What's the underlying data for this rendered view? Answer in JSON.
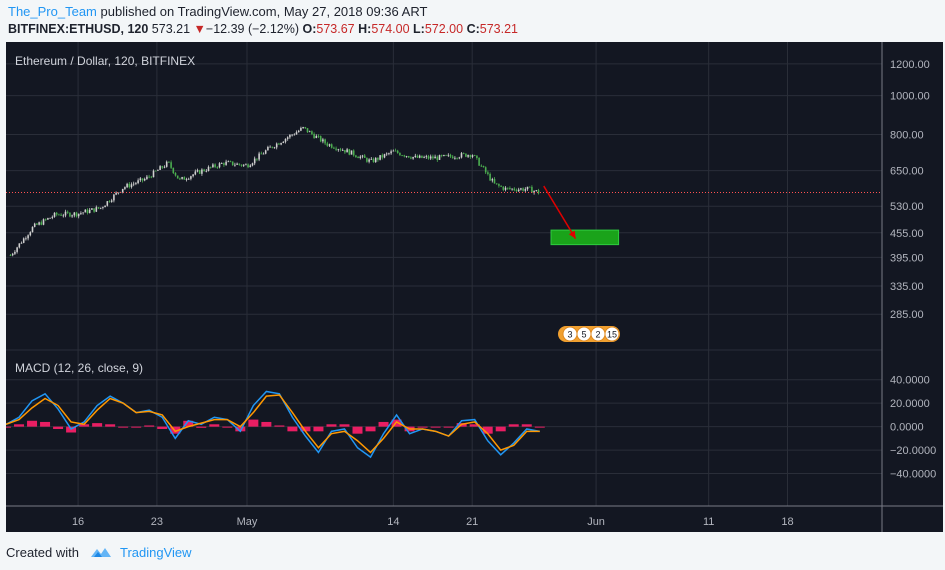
{
  "header": {
    "author": "The_Pro_Team",
    "published_text": "published on TradingView.com, May 27, 2018 09:36 ART",
    "symbol": "BITFINEX:ETHUSD, 120",
    "last_price": "573.21",
    "change_arrow": "▼",
    "change": "−12.39 (−2.12%)",
    "o_label": "O:",
    "o_value": "573.67",
    "h_label": "H:",
    "h_value": "574.00",
    "l_label": "L:",
    "l_value": "572.00",
    "c_label": "C:",
    "c_value": "573.21"
  },
  "colors": {
    "background": "#131722",
    "candle_up": "#d0d0d0",
    "candle_down": "#4caf50",
    "macd_line": "#2196f3",
    "signal_line": "#ff9800",
    "histogram": "#e91e63",
    "target_box": "#1aa31a",
    "arrow": "#e00000",
    "price_line": "#ff5252"
  },
  "chart_data": [
    {
      "type": "candlestick",
      "title": "Ethereum / Dollar, 120, BITFINEX",
      "y_scale": "log",
      "ylim": [
        250,
        1300
      ],
      "y_ticks": [
        "1200.00",
        "1000.00",
        "800.00",
        "650.00",
        "530.00",
        "455.00",
        "395.00",
        "335.00",
        "285.00"
      ],
      "x_ticks": [
        "16",
        "23",
        "May",
        "14",
        "21",
        "Jun",
        "11",
        "18"
      ],
      "current_price": 573.21,
      "close_path": [
        {
          "x": "Apr 10",
          "y": 400
        },
        {
          "x": "Apr 12",
          "y": 470
        },
        {
          "x": "Apr 14",
          "y": 505
        },
        {
          "x": "Apr 16",
          "y": 508
        },
        {
          "x": "Apr 18",
          "y": 525
        },
        {
          "x": "Apr 20",
          "y": 590
        },
        {
          "x": "Apr 22",
          "y": 620
        },
        {
          "x": "Apr 24",
          "y": 680
        },
        {
          "x": "Apr 25",
          "y": 615
        },
        {
          "x": "Apr 27",
          "y": 650
        },
        {
          "x": "Apr 29",
          "y": 680
        },
        {
          "x": "May 1",
          "y": 670
        },
        {
          "x": "May 3",
          "y": 740
        },
        {
          "x": "May 5",
          "y": 800
        },
        {
          "x": "May 6",
          "y": 830
        },
        {
          "x": "May 8",
          "y": 760
        },
        {
          "x": "May 10",
          "y": 725
        },
        {
          "x": "May 12",
          "y": 685
        },
        {
          "x": "May 14",
          "y": 725
        },
        {
          "x": "May 16",
          "y": 700
        },
        {
          "x": "May 18",
          "y": 700
        },
        {
          "x": "May 20",
          "y": 710
        },
        {
          "x": "May 21",
          "y": 715
        },
        {
          "x": "May 23",
          "y": 600
        },
        {
          "x": "May 24",
          "y": 585
        },
        {
          "x": "May 26",
          "y": 585
        },
        {
          "x": "May 27",
          "y": 573
        }
      ],
      "projection": {
        "from": {
          "x": "May 27",
          "y": 595
        },
        "to": {
          "x": "May 30",
          "y": 440
        }
      },
      "target_zone": {
        "x_start": "May 28",
        "x_end": "Jun 3",
        "y_low": 425,
        "y_high": 462
      }
    },
    {
      "type": "line",
      "title": "MACD (12, 26, close, 9)",
      "ylim": [
        -60,
        50
      ],
      "y_ticks": [
        "40.0000",
        "20.0000",
        "0.0000",
        "−20.0000",
        "−40.0000"
      ],
      "series": [
        {
          "values": [
            2,
            8,
            22,
            28,
            15,
            -2,
            4,
            18,
            26,
            20,
            12,
            14,
            8,
            -10,
            5,
            2,
            8,
            6,
            -4,
            18,
            30,
            28,
            8,
            -8,
            -22,
            -4,
            -2,
            -18,
            -26,
            -6,
            10,
            -6,
            -2,
            -4,
            -8,
            5,
            6,
            -12,
            -24,
            -14,
            -2,
            -4
          ]
        },
        {
          "values": [
            2,
            6,
            16,
            24,
            18,
            4,
            2,
            14,
            24,
            20,
            12,
            13,
            10,
            -4,
            0,
            3,
            6,
            6,
            0,
            12,
            26,
            27,
            12,
            -4,
            -18,
            -6,
            -4,
            -12,
            -22,
            -10,
            4,
            -2,
            -2,
            -4,
            -8,
            2,
            4,
            -6,
            -20,
            -16,
            -4,
            -4
          ]
        },
        {
          "values": [
            0,
            2,
            5,
            4,
            -2,
            -5,
            2,
            3,
            2,
            0,
            0,
            1,
            -2,
            -6,
            5,
            -1,
            2,
            0,
            -4,
            6,
            4,
            1,
            -4,
            -4,
            -4,
            2,
            2,
            -6,
            -4,
            4,
            6,
            -4,
            0,
            0,
            0,
            3,
            2,
            -6,
            -4,
            2,
            2,
            0
          ]
        }
      ]
    }
  ],
  "badges": [
    "3",
    "5",
    "2",
    "15"
  ],
  "footer": {
    "created_with": "Created with",
    "brand": "TradingView"
  }
}
